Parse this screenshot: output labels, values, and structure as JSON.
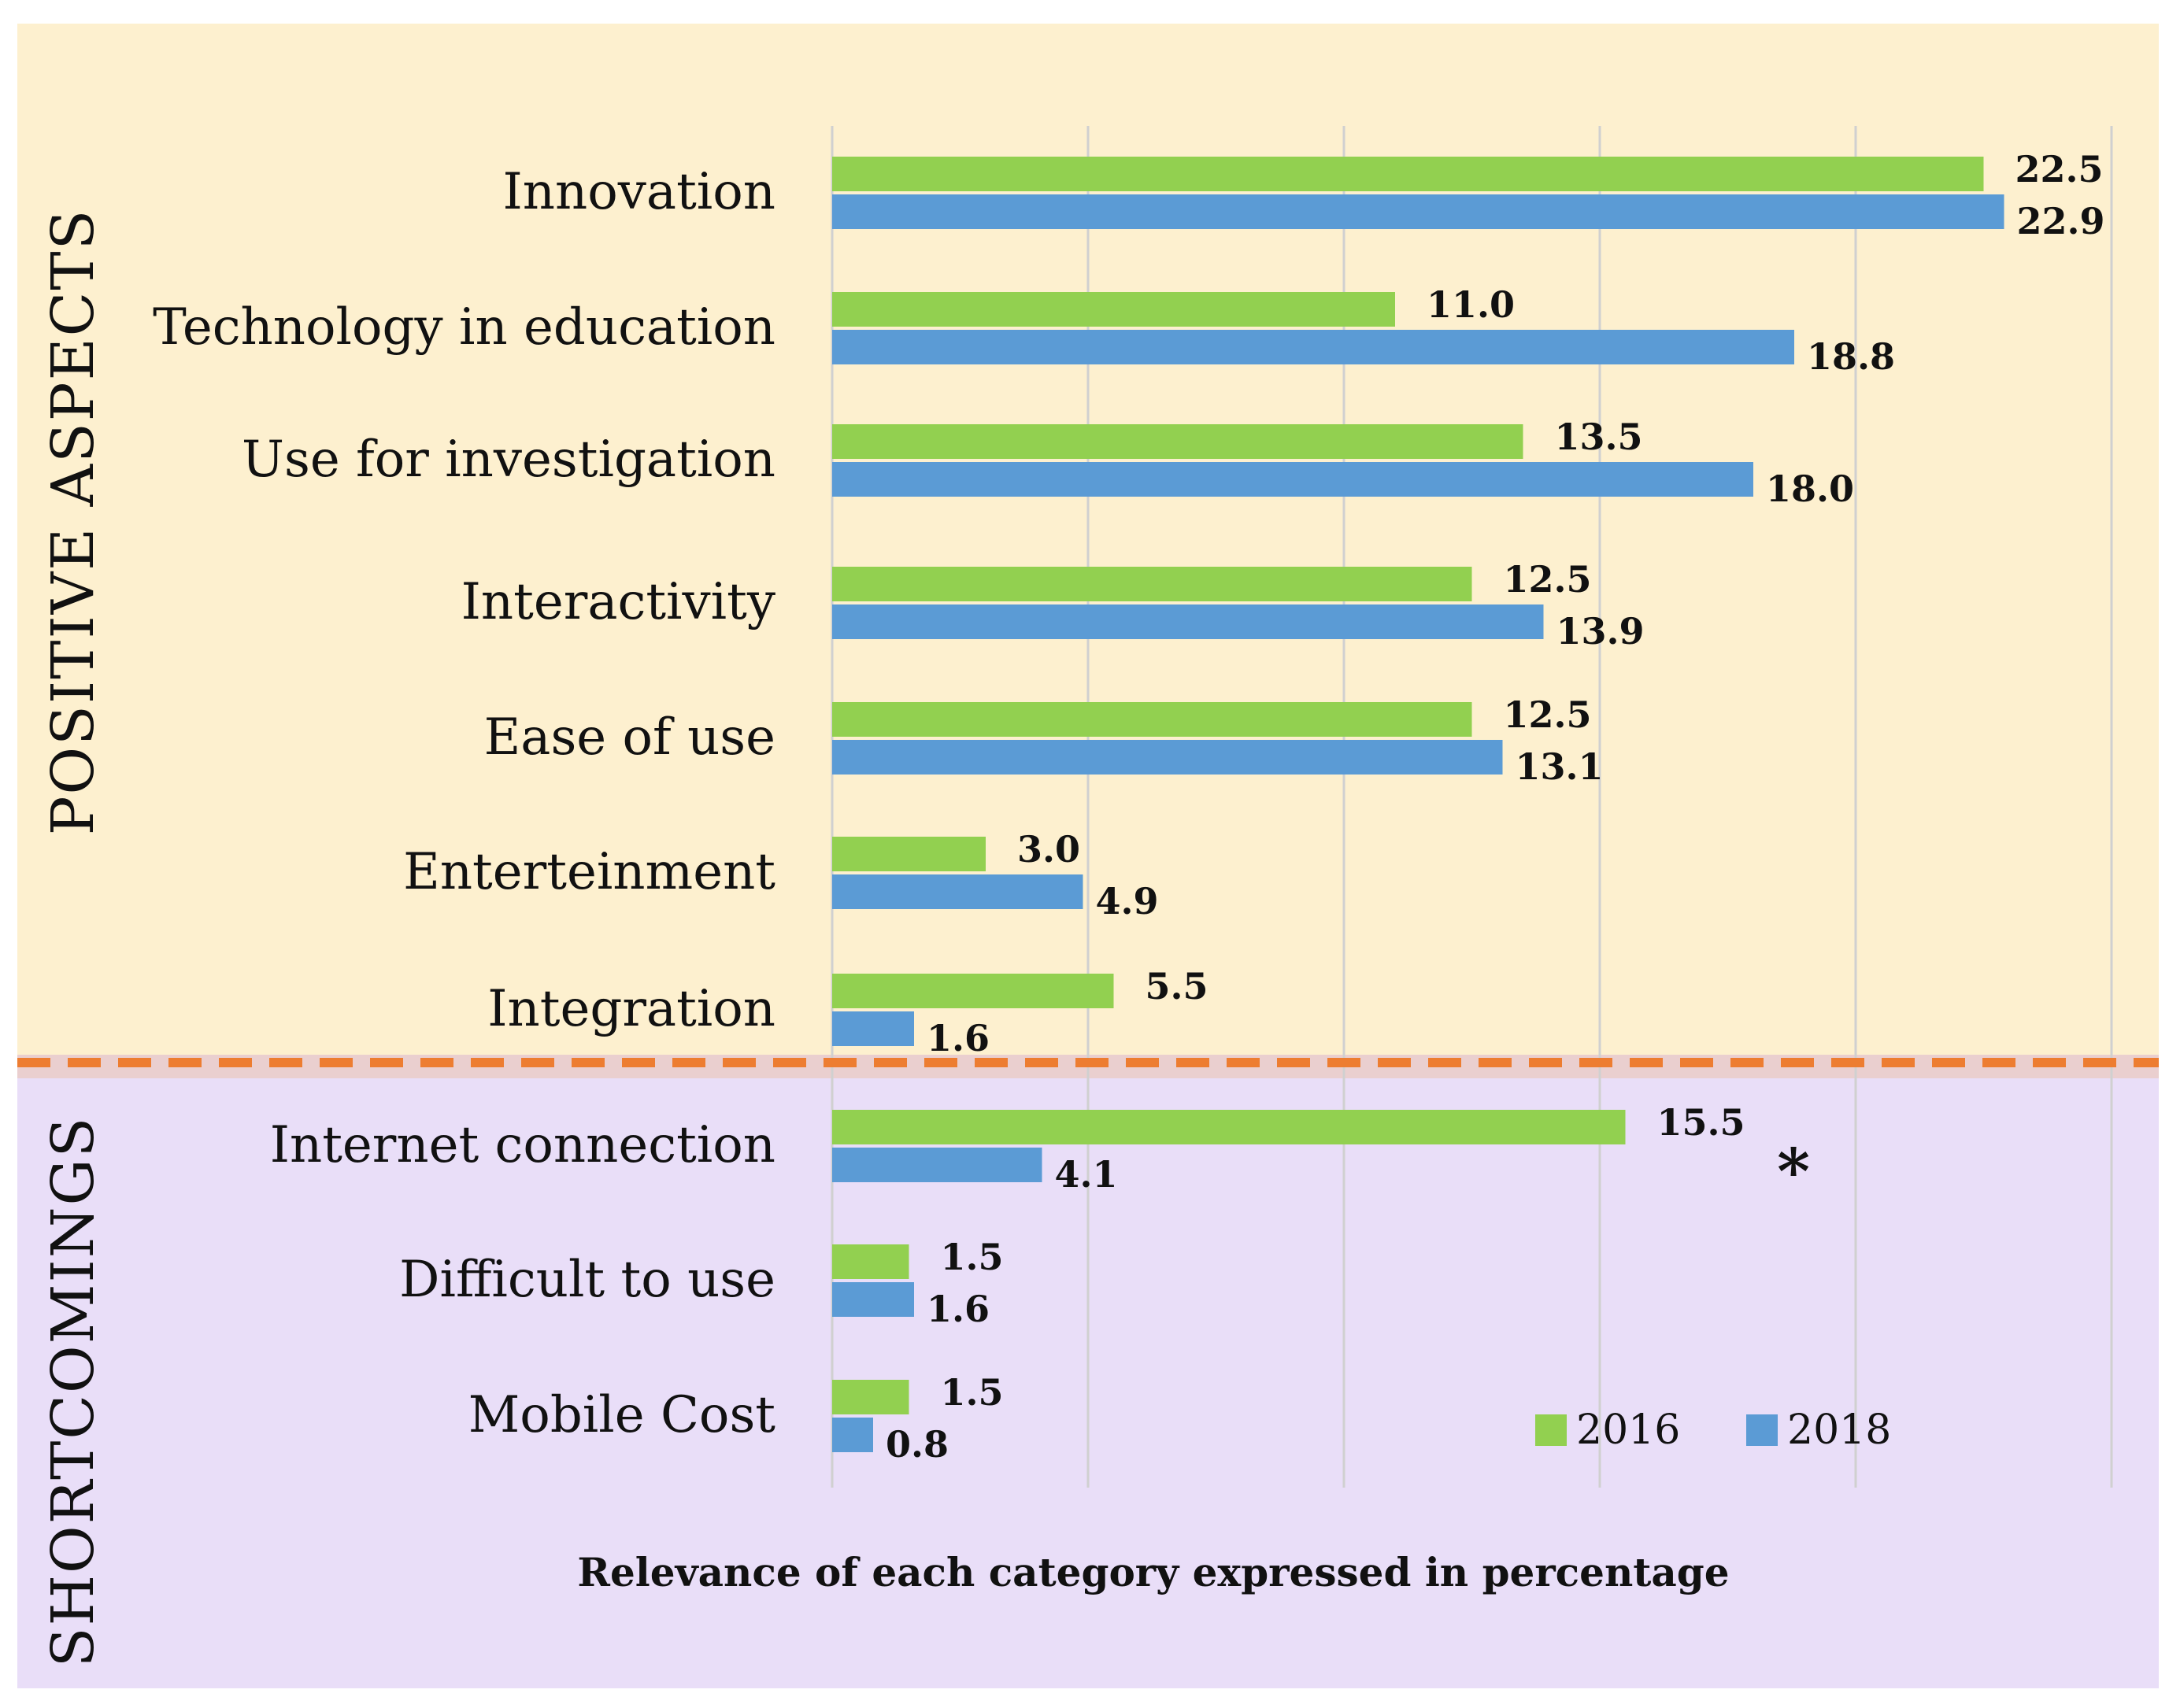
{
  "chart_data": {
    "type": "bar",
    "orientation": "horizontal",
    "xlabel": "Relevance of each category expressed in percentage",
    "xlim": [
      0,
      25
    ],
    "grid": true,
    "legend_position": "bottom-right",
    "sections": [
      {
        "name": "POSITIVE ASPECTS",
        "color": "#fdf0cf",
        "categories": [
          "Innovation",
          "Technology in education",
          "Use for investigation",
          "Interactivity",
          "Ease of use",
          "Enterteinment",
          "Integration"
        ]
      },
      {
        "name": "SHORTCOMINGS",
        "color": "#e9def8",
        "categories": [
          "Internet connection",
          "Difficult to use",
          "Mobile Cost"
        ]
      }
    ],
    "categories": [
      "Innovation",
      "Technology in education",
      "Use for investigation",
      "Interactivity",
      "Ease of use",
      "Enterteinment",
      "Integration",
      "Internet connection",
      "Difficult to use",
      "Mobile Cost"
    ],
    "series": [
      {
        "name": "2016",
        "color": "#92d050",
        "values": [
          22.5,
          11.0,
          13.5,
          12.5,
          12.5,
          3.0,
          5.5,
          15.5,
          1.5,
          1.5
        ],
        "labels": [
          "22.5",
          "11.0",
          "13.5",
          "12.5",
          "12.5",
          "3.0",
          "5.5",
          "15.5",
          "1.5",
          "1.5"
        ]
      },
      {
        "name": "2018",
        "color": "#5b9bd5",
        "values": [
          22.9,
          18.8,
          18.0,
          13.9,
          13.1,
          4.9,
          1.6,
          4.1,
          1.6,
          0.8
        ],
        "labels": [
          "22.9",
          "18.8",
          "18.0",
          "13.9",
          "13.1",
          "4.9",
          "1.6",
          "4.1",
          "1.6",
          "0.8"
        ]
      }
    ],
    "annotations": [
      {
        "text": "*",
        "category": "Internet connection"
      }
    ],
    "divider_color": "#ed7d31"
  }
}
